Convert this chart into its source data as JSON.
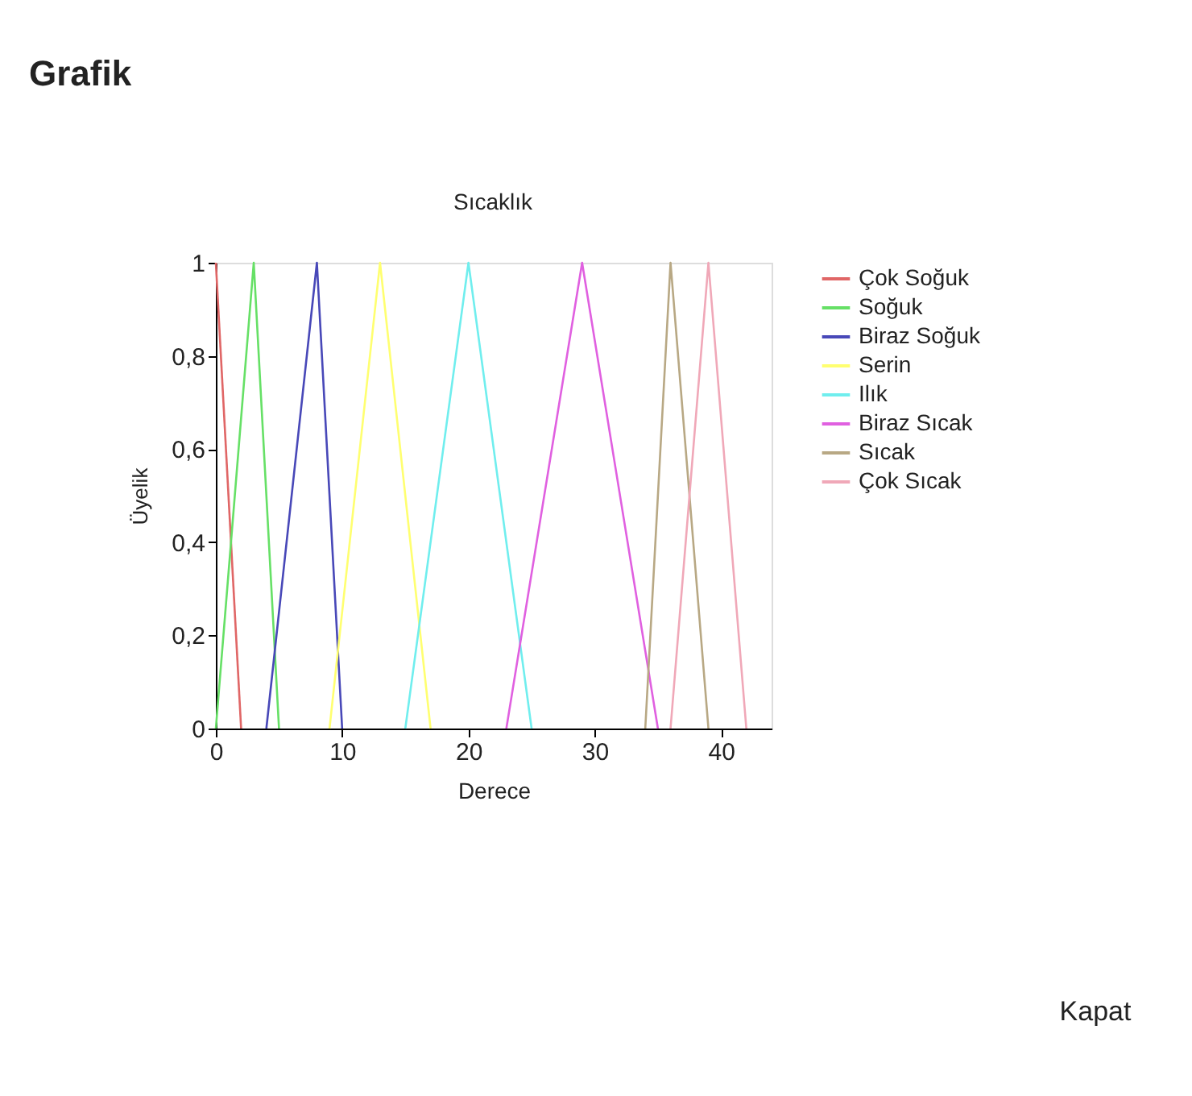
{
  "chart_data": {
    "type": "line",
    "title": "Sıcaklık",
    "xlabel": "Derece",
    "ylabel": "Üyelik",
    "annotations": [
      "Grafik",
      "Kapat"
    ],
    "xlim": [
      0,
      44
    ],
    "xticks": [
      0,
      10,
      20,
      30,
      40
    ],
    "ylim": [
      0,
      1
    ],
    "yticks": [
      {
        "value": 0,
        "label": "0"
      },
      {
        "value": 0.2,
        "label": "0,2"
      },
      {
        "value": 0.4,
        "label": "0,4"
      },
      {
        "value": 0.6,
        "label": "0,6"
      },
      {
        "value": 0.8,
        "label": "0,8"
      },
      1
    ],
    "grid": false,
    "legend": "right",
    "marker": "none",
    "line_style": "solid",
    "series": [
      {
        "name": "Çok Soğuk",
        "color": "#e06666",
        "x": [
          0,
          2
        ],
        "values": [
          1,
          0
        ]
      },
      {
        "name": "Soğuk",
        "color": "#66e066",
        "x": [
          0,
          3,
          5
        ],
        "values": [
          0,
          1,
          0
        ]
      },
      {
        "name": "Biraz Soğuk",
        "color": "#4848b8",
        "x": [
          4,
          8,
          10
        ],
        "values": [
          0,
          1,
          0
        ]
      },
      {
        "name": "Serin",
        "color": "#ffff70",
        "x": [
          9,
          13,
          17
        ],
        "values": [
          0,
          1,
          0
        ]
      },
      {
        "name": "Ilık",
        "color": "#70eeee",
        "x": [
          15,
          20,
          25
        ],
        "values": [
          0,
          1,
          0
        ]
      },
      {
        "name": "Biraz Sıcak",
        "color": "#e060e0",
        "x": [
          23,
          29,
          35
        ],
        "values": [
          0,
          1,
          0
        ]
      },
      {
        "name": "Sıcak",
        "color": "#b8a884",
        "x": [
          34,
          36,
          39
        ],
        "values": [
          0,
          1,
          0
        ]
      },
      {
        "name": "Çok Sıcak",
        "color": "#f0a8b8",
        "x": [
          36,
          39,
          42
        ],
        "values": [
          0,
          1,
          0
        ]
      }
    ]
  }
}
